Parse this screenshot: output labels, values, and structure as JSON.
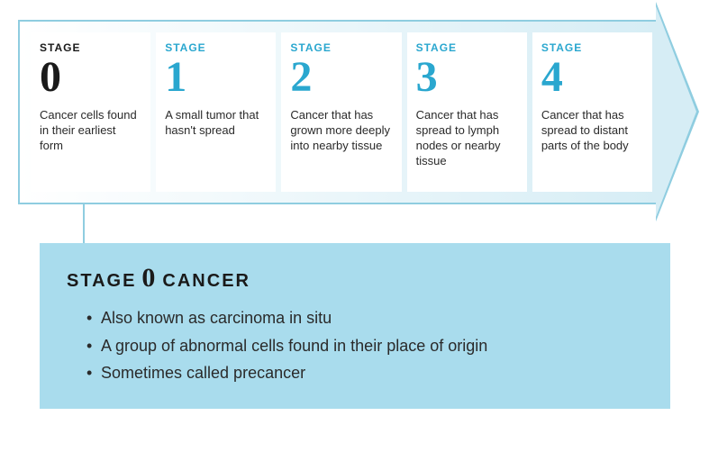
{
  "colors": {
    "accent": "#2aa7cf",
    "text": "#1a1a1a",
    "arrow_border": "#8fcde0",
    "arrow_fill_end": "#d6edf5",
    "detail_bg": "#a9dced",
    "connector": "#8fcde0",
    "card_bg": "#ffffff"
  },
  "stages": [
    {
      "label": "STAGE",
      "num": "0",
      "desc": "Cancer cells found in their earliest form",
      "active": true
    },
    {
      "label": "STAGE",
      "num": "1",
      "desc": "A small tumor that hasn't spread",
      "active": false
    },
    {
      "label": "STAGE",
      "num": "2",
      "desc": "Cancer that has grown more deeply into nearby tissue",
      "active": false
    },
    {
      "label": "STAGE",
      "num": "3",
      "desc": "Cancer that has spread to lymph nodes or nearby tissue",
      "active": false
    },
    {
      "label": "STAGE",
      "num": "4",
      "desc": "Cancer that has spread to distant parts of the body",
      "active": false
    }
  ],
  "detail": {
    "title_pre": "STAGE",
    "title_num": "0",
    "title_post": "CANCER",
    "bullets": [
      "Also known as carcinoma in situ",
      "A group of abnormal cells found in their place of origin",
      "Sometimes called precancer"
    ]
  }
}
